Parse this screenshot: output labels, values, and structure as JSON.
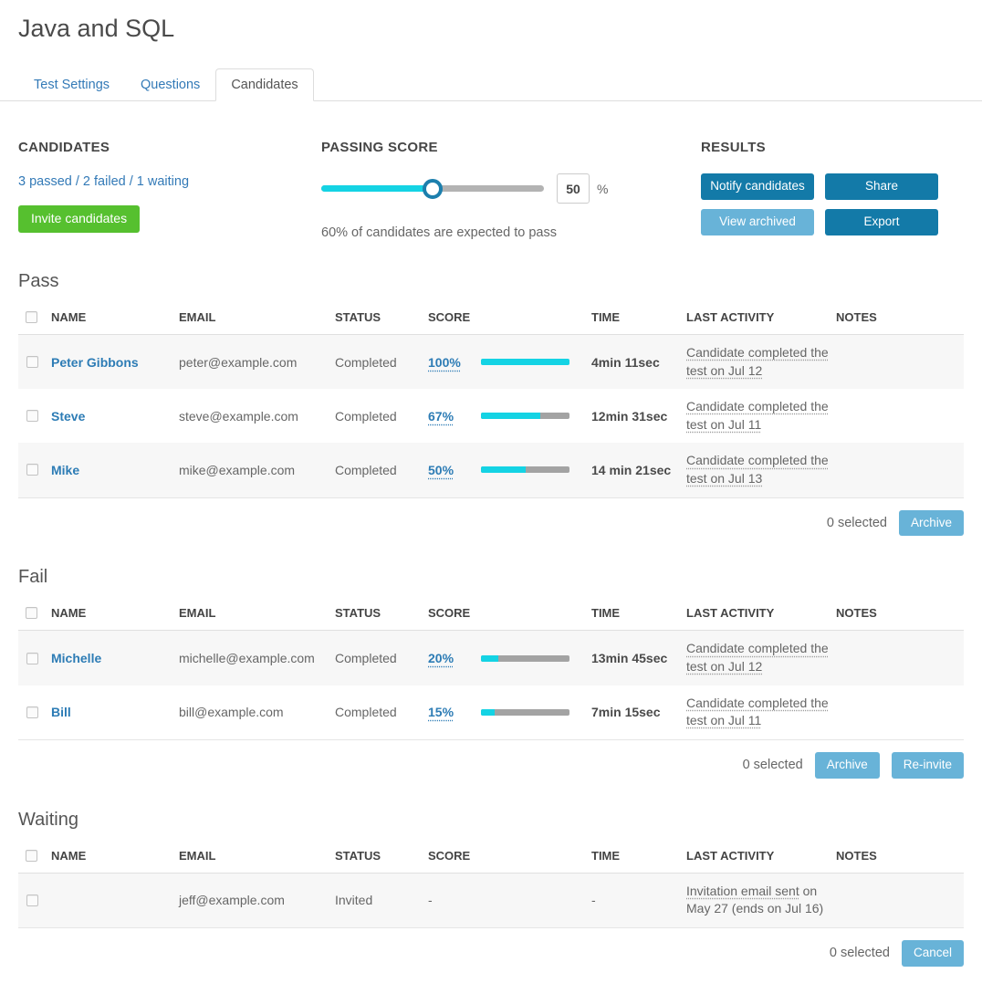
{
  "page": {
    "title": "Java and SQL"
  },
  "tabs": [
    {
      "label": "Test Settings",
      "active": false
    },
    {
      "label": "Questions",
      "active": false
    },
    {
      "label": "Candidates",
      "active": true
    }
  ],
  "summary": {
    "candidates_heading": "CANDIDATES",
    "counts_link": "3 passed / 2 failed / 1 waiting",
    "invite_button": "Invite candidates",
    "passing_heading": "PASSING SCORE",
    "passing_value": "50",
    "percent_sign": "%",
    "slider_percent": 50,
    "expected_text": "60% of candidates are expected to pass",
    "results_heading": "RESULTS",
    "results_buttons": [
      {
        "label": "Notify candidates",
        "variant": "dark"
      },
      {
        "label": "Share",
        "variant": "dark"
      },
      {
        "label": "View archived",
        "variant": "light"
      },
      {
        "label": "Export",
        "variant": "dark"
      }
    ]
  },
  "table_headers": [
    "NAME",
    "EMAIL",
    "STATUS",
    "SCORE",
    "TIME",
    "LAST ACTIVITY",
    "NOTES"
  ],
  "sections": [
    {
      "heading": "Pass",
      "rows": [
        {
          "name": "Peter Gibbons",
          "email": "peter@example.com",
          "status": "Completed",
          "score": "100%",
          "score_pct": 100,
          "time": "4min 11sec",
          "activity_link": "Candidate completed the test on Jul 12",
          "activity_rest": ""
        },
        {
          "name": "Steve",
          "email": "steve@example.com",
          "status": "Completed",
          "score": "67%",
          "score_pct": 67,
          "time": "12min 31sec",
          "activity_link": "Candidate completed the test on Jul 11",
          "activity_rest": ""
        },
        {
          "name": "Mike",
          "email": "mike@example.com",
          "status": "Completed",
          "score": "50%",
          "score_pct": 50,
          "time": "14 min 21sec",
          "activity_link": "Candidate completed the test on Jul 13",
          "activity_rest": ""
        }
      ],
      "footer": {
        "selected": "0 selected",
        "buttons": [
          "Archive"
        ]
      }
    },
    {
      "heading": "Fail",
      "rows": [
        {
          "name": "Michelle",
          "email": "michelle@example.com",
          "status": "Completed",
          "score": "20%",
          "score_pct": 20,
          "time": "13min 45sec",
          "activity_link": "Candidate completed the test on Jul 12",
          "activity_rest": ""
        },
        {
          "name": "Bill",
          "email": "bill@example.com",
          "status": "Completed",
          "score": "15%",
          "score_pct": 15,
          "time": "7min 15sec",
          "activity_link": "Candidate completed the test on Jul 11",
          "activity_rest": ""
        }
      ],
      "footer": {
        "selected": "0 selected",
        "buttons": [
          "Archive",
          "Re-invite"
        ]
      }
    },
    {
      "heading": "Waiting",
      "rows": [
        {
          "name": "",
          "email": "jeff@example.com",
          "status": "Invited",
          "score": "-",
          "score_pct": null,
          "time": "-",
          "activity_link": "Invitation email sent",
          "activity_rest": " on May 27 (ends on Jul 16)"
        }
      ],
      "footer": {
        "selected": "0 selected",
        "buttons": [
          "Cancel"
        ]
      }
    }
  ],
  "colors": {
    "link_blue": "#337ab7",
    "button_dark_blue": "#137aa8",
    "button_light_blue": "#68b3d8",
    "button_green": "#56c02f",
    "progress_cyan": "#14d3e4",
    "progress_gray": "#a3a3a3"
  }
}
